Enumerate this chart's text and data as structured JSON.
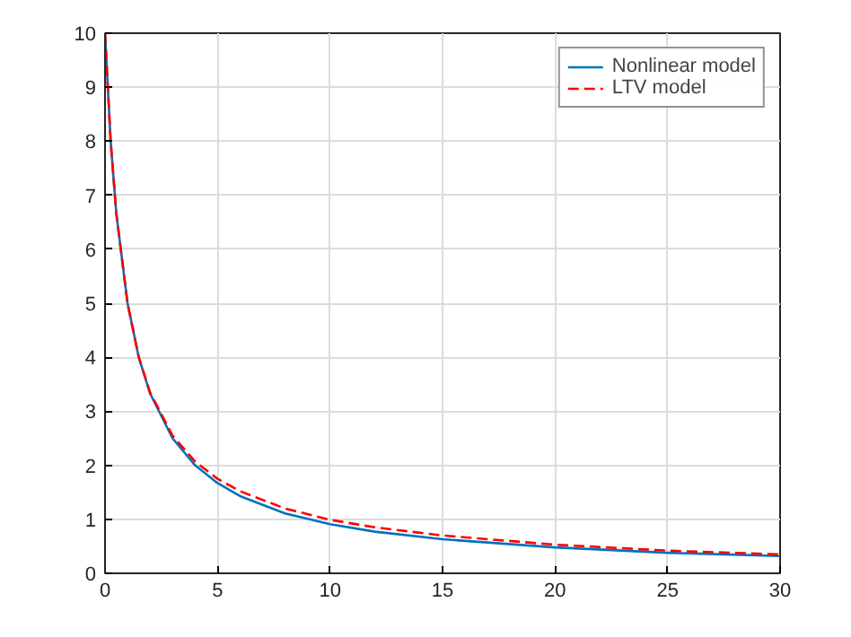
{
  "chart_data": {
    "type": "line",
    "x": [
      0,
      0.25,
      0.5,
      1,
      1.5,
      2,
      3,
      4,
      5,
      6,
      8,
      10,
      12,
      15,
      20,
      25,
      30
    ],
    "series": [
      {
        "name": "Nonlinear model",
        "color": "#0072bd",
        "line_style": "solid",
        "values": [
          10,
          8,
          6.67,
          5,
          4,
          3.33,
          2.5,
          2.0,
          1.67,
          1.43,
          1.11,
          0.91,
          0.77,
          0.63,
          0.48,
          0.38,
          0.32
        ]
      },
      {
        "name": "LTV model",
        "color": "#ff0000",
        "line_style": "dashed",
        "values": [
          10,
          8,
          6.67,
          5,
          4,
          3.35,
          2.55,
          2.07,
          1.75,
          1.52,
          1.2,
          0.99,
          0.85,
          0.7,
          0.53,
          0.42,
          0.35
        ]
      }
    ],
    "xlim": [
      0,
      30
    ],
    "xticks": [
      0,
      5,
      10,
      15,
      20,
      25,
      30
    ],
    "ylim": [
      0,
      10
    ],
    "yticks": [
      0,
      1,
      2,
      3,
      4,
      5,
      6,
      7,
      8,
      9,
      10
    ],
    "grid": true,
    "legend": "top right",
    "marker": "none"
  }
}
